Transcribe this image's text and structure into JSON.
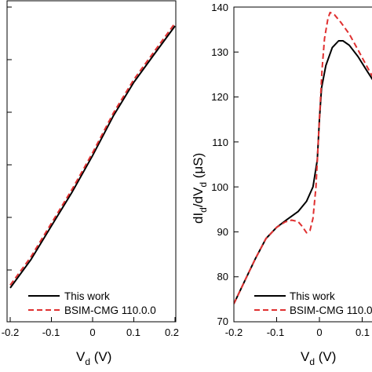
{
  "chart_data": [
    {
      "type": "line",
      "title": "",
      "xlabel": "V_d (V)",
      "ylabel": "",
      "xlim": [
        -0.2,
        0.2
      ],
      "xticks": [
        "-0.2",
        "-0.1",
        "0",
        "0.1",
        "0.2"
      ],
      "grid": false,
      "legend_position": "bottom-right",
      "series": [
        {
          "name": "This work",
          "style": "solid",
          "color": "#000000",
          "x": [
            -0.2,
            -0.15,
            -0.1,
            -0.05,
            0.0,
            0.05,
            0.1,
            0.15,
            0.2
          ],
          "y": [
            0.12,
            0.22,
            0.34,
            0.46,
            0.59,
            0.73,
            0.85,
            0.95,
            1.05
          ]
        },
        {
          "name": "BSIM-CMG 110.0.0",
          "style": "dashed",
          "color": "#e03030",
          "x": [
            -0.2,
            -0.15,
            -0.1,
            -0.05,
            0.0,
            0.05,
            0.1,
            0.15,
            0.2
          ],
          "y": [
            0.13,
            0.23,
            0.35,
            0.47,
            0.6,
            0.74,
            0.86,
            0.96,
            1.06
          ]
        }
      ]
    },
    {
      "type": "line",
      "title": "",
      "xlabel": "V_d (V)",
      "ylabel": "dI_d/dV_d (μS)",
      "xlim": [
        -0.2,
        0.15
      ],
      "ylim": [
        70,
        140
      ],
      "xticks": [
        "-0.2",
        "-0.1",
        "0",
        "0.1"
      ],
      "yticks": [
        70,
        80,
        90,
        100,
        110,
        120,
        130,
        140
      ],
      "grid": false,
      "legend_position": "bottom-right",
      "series": [
        {
          "name": "This work",
          "style": "solid",
          "color": "#000000",
          "x": [
            -0.2,
            -0.175,
            -0.15,
            -0.125,
            -0.1,
            -0.075,
            -0.05,
            -0.03,
            -0.015,
            -0.005,
            0.0,
            0.005,
            0.015,
            0.03,
            0.045,
            0.055,
            0.07,
            0.09,
            0.11,
            0.13,
            0.15
          ],
          "y": [
            74,
            79,
            84,
            88.5,
            91,
            92.8,
            94.5,
            96.8,
            100,
            106,
            115,
            122,
            127,
            131,
            132.5,
            132.5,
            131.5,
            129,
            126,
            123,
            120
          ]
        },
        {
          "name": "BSIM-CMG 110.0.0",
          "style": "dashed",
          "color": "#e03030",
          "x": [
            -0.2,
            -0.175,
            -0.15,
            -0.125,
            -0.1,
            -0.08,
            -0.065,
            -0.05,
            -0.04,
            -0.03,
            -0.022,
            -0.015,
            -0.008,
            0.0,
            0.006,
            0.012,
            0.02,
            0.025,
            0.035,
            0.05,
            0.07,
            0.09,
            0.11,
            0.13,
            0.15
          ],
          "y": [
            74,
            79,
            84,
            88.5,
            91,
            92.2,
            92.6,
            92.3,
            91.2,
            89.8,
            90.3,
            93,
            100,
            115,
            126,
            133,
            137.5,
            138.8,
            138.3,
            136.6,
            134,
            130.5,
            127,
            123.5,
            120
          ]
        }
      ]
    }
  ]
}
